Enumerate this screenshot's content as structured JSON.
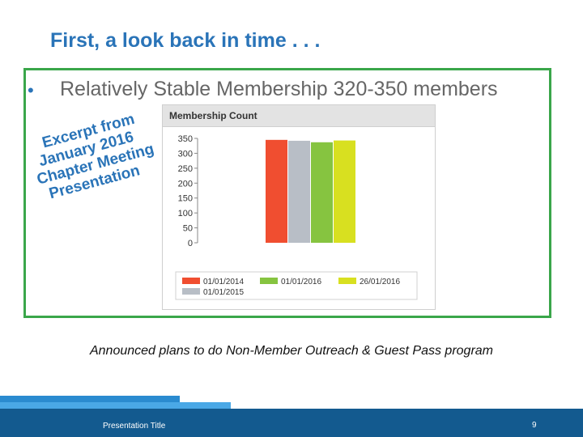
{
  "slide": {
    "title": "First, a look back in time . . .",
    "bullet_marker": "•",
    "bullet_text": "Relatively Stable Membership 320-350 members",
    "stamp_lines": [
      "Excerpt from",
      "January 2016",
      "Chapter Meeting",
      "Presentation"
    ],
    "announcement": "Announced plans to do Non-Member Outreach & Guest Pass program",
    "footer_title": "Presentation Title",
    "page_number": "9"
  },
  "colors": {
    "accent_blue": "#2a74b8",
    "frame_green": "#3aa64a",
    "footer_blue": "#135a8f"
  },
  "chart_data": {
    "type": "bar",
    "title": "Membership Count",
    "ylim": [
      0,
      350
    ],
    "yticks": [
      0,
      50,
      100,
      150,
      200,
      250,
      300,
      350
    ],
    "grid": false,
    "legend_position": "bottom",
    "series": [
      {
        "name": "01/01/2014",
        "value": 345,
        "color": "#f04e30"
      },
      {
        "name": "01/01/2015",
        "value": 342,
        "color": "#b8bec6"
      },
      {
        "name": "01/01/2016",
        "value": 337,
        "color": "#86c440"
      },
      {
        "name": "26/01/2016",
        "value": 343,
        "color": "#d8e020"
      }
    ]
  }
}
